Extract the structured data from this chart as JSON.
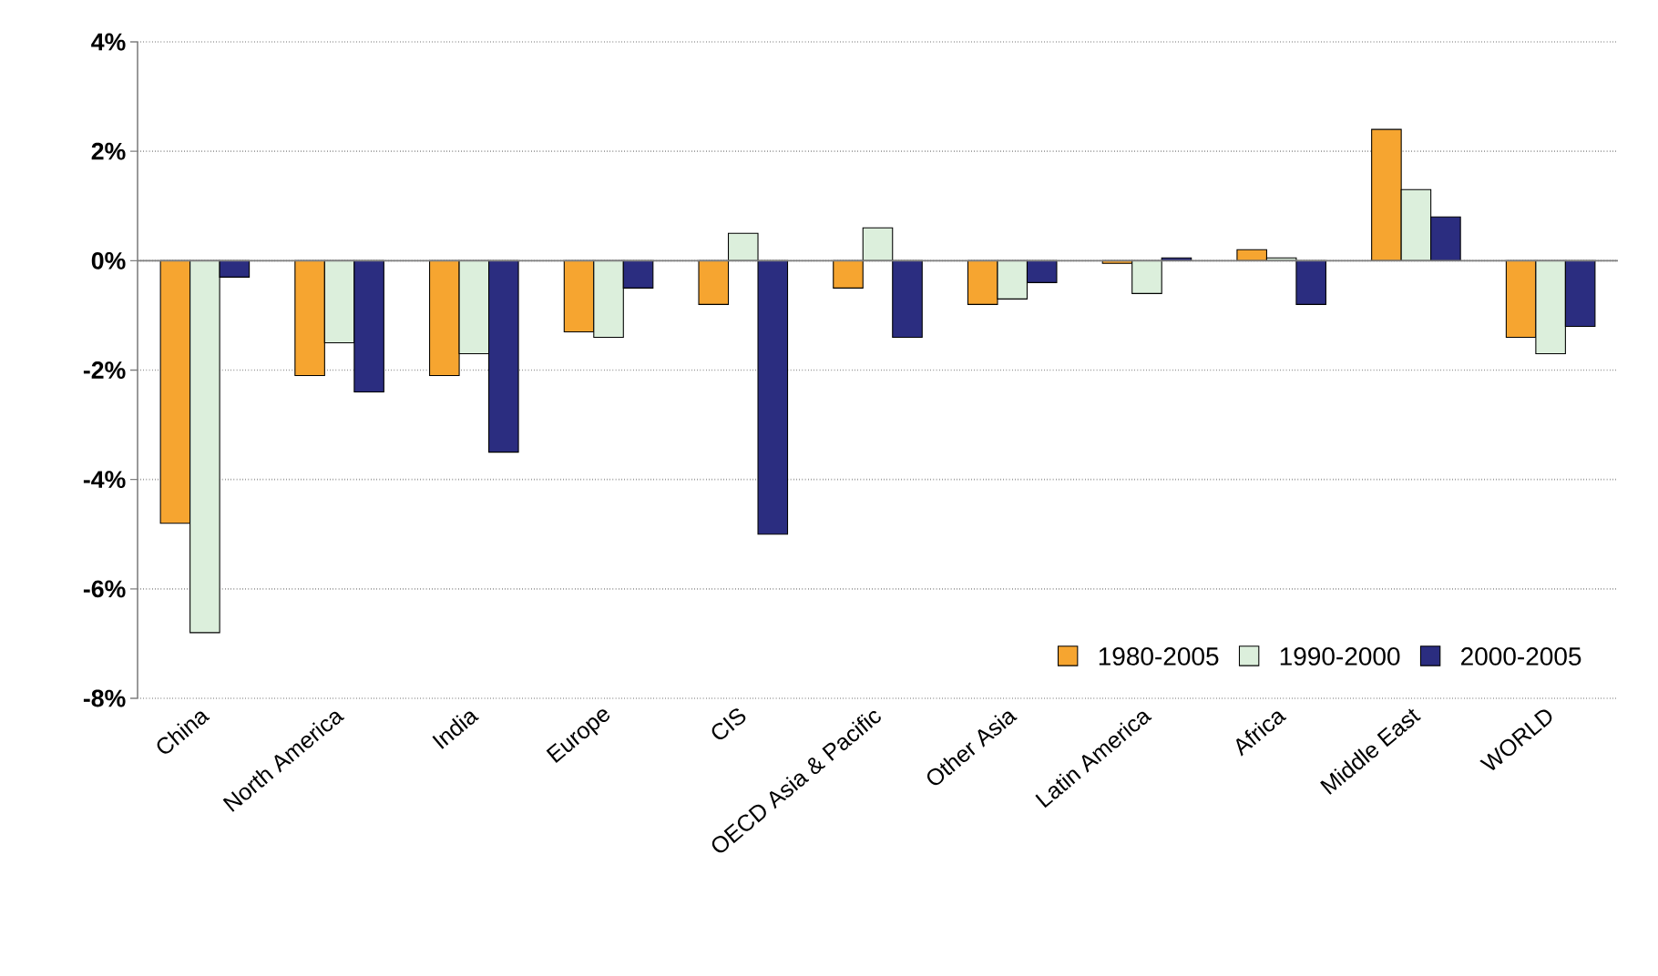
{
  "chart_data": {
    "type": "bar",
    "categories": [
      "China",
      "North America",
      "India",
      "Europe",
      "CIS",
      "OECD Asia & Pacific",
      "Other Asia",
      "Latin America",
      "Africa",
      "Middle East",
      "WORLD"
    ],
    "series": [
      {
        "name": "1980-2005",
        "color": "#f6a530",
        "values": [
          -4.8,
          -2.1,
          -2.1,
          -1.3,
          -0.8,
          -0.5,
          -0.8,
          -0.05,
          0.2,
          2.4,
          -1.4
        ]
      },
      {
        "name": "1990-2000",
        "color": "#dcefdc",
        "values": [
          -6.8,
          -1.5,
          -1.7,
          -1.4,
          0.5,
          0.6,
          -0.7,
          -0.6,
          0.05,
          1.3,
          -1.7
        ]
      },
      {
        "name": "2000-2005",
        "color": "#2b2d80",
        "values": [
          -0.3,
          -2.4,
          -3.5,
          -0.5,
          -5.0,
          -1.4,
          -0.4,
          0.05,
          -0.8,
          0.8,
          -1.2
        ]
      }
    ],
    "ylim": [
      -8,
      4
    ],
    "yticks": [
      {
        "value": -8,
        "label": "-8%"
      },
      {
        "value": -6,
        "label": "-6%"
      },
      {
        "value": -4,
        "label": "-4%"
      },
      {
        "value": -2,
        "label": "-2%"
      },
      {
        "value": 0,
        "label": "0%"
      },
      {
        "value": 2,
        "label": "2%"
      },
      {
        "value": 4,
        "label": "4%"
      }
    ],
    "grid": "y",
    "legend": "bottom right"
  }
}
